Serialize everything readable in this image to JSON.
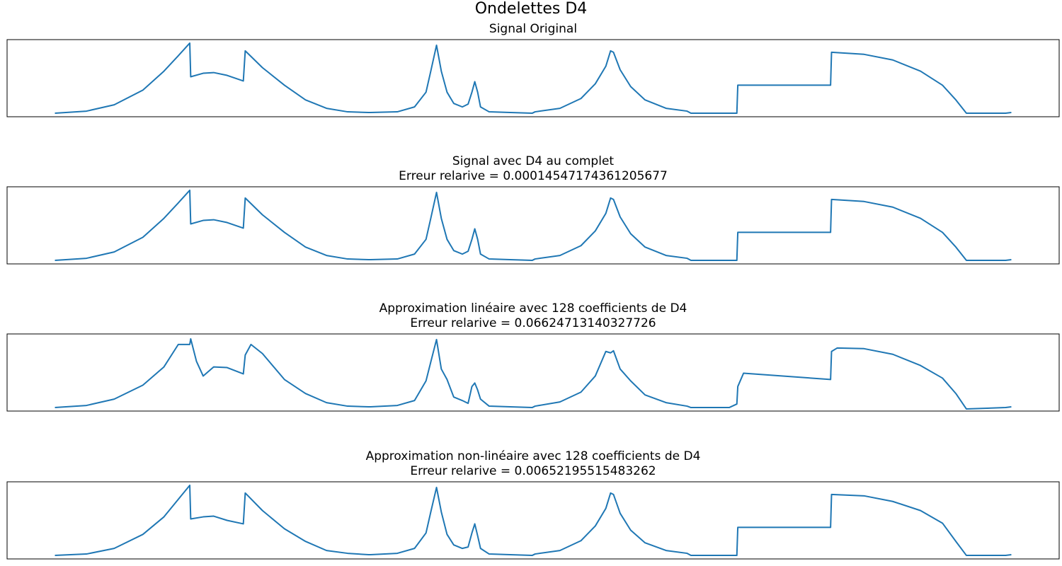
{
  "title": "Ondelettes D4",
  "chart_data": [
    {
      "type": "line",
      "title": "Signal Original",
      "color": "#1f77b4",
      "xlim": [
        -0.05,
        1.05
      ],
      "ylim": [
        -0.05,
        1.05
      ],
      "x": [
        0,
        0.033,
        0.062,
        0.092,
        0.114,
        0.129,
        0.141,
        0.142,
        0.155,
        0.166,
        0.18,
        0.197,
        0.199,
        0.217,
        0.24,
        0.262,
        0.284,
        0.306,
        0.328,
        0.33,
        0.358,
        0.376,
        0.388,
        0.393,
        0.399,
        0.404,
        0.41,
        0.417,
        0.426,
        0.432,
        0.436,
        0.439,
        0.442,
        0.445,
        0.454,
        0.476,
        0.499,
        0.502,
        0.528,
        0.55,
        0.565,
        0.576,
        0.581,
        0.584,
        0.591,
        0.602,
        0.617,
        0.639,
        0.661,
        0.665,
        0.713,
        0.714,
        0.811,
        0.812,
        0.846,
        0.876,
        0.905,
        0.928,
        0.942,
        0.953,
        0.994,
        1
      ],
      "values": [
        0,
        0.03,
        0.12,
        0.33,
        0.6,
        0.82,
        1,
        0.52,
        0.57,
        0.58,
        0.54,
        0.46,
        0.89,
        0.65,
        0.4,
        0.19,
        0.07,
        0.02,
        0.01,
        0.01,
        0.02,
        0.09,
        0.3,
        0.6,
        0.97,
        0.6,
        0.3,
        0.14,
        0.09,
        0.13,
        0.3,
        0.45,
        0.3,
        0.09,
        0.02,
        0.01,
        0,
        0.02,
        0.07,
        0.21,
        0.42,
        0.67,
        0.89,
        0.87,
        0.62,
        0.38,
        0.19,
        0.07,
        0.03,
        0,
        0,
        0.4,
        0.4,
        0.87,
        0.84,
        0.76,
        0.6,
        0.4,
        0.19,
        0,
        0,
        0.01
      ]
    },
    {
      "type": "line",
      "title": "Signal avec D4 au complet",
      "subtitle": "Erreur relarive = 0.00014547174361205677",
      "color": "#1f77b4",
      "xlim": [
        -0.05,
        1.05
      ],
      "ylim": [
        -0.05,
        1.05
      ],
      "x": [
        0,
        0.033,
        0.062,
        0.092,
        0.114,
        0.129,
        0.141,
        0.142,
        0.155,
        0.166,
        0.18,
        0.197,
        0.199,
        0.217,
        0.24,
        0.262,
        0.284,
        0.306,
        0.328,
        0.33,
        0.358,
        0.376,
        0.388,
        0.393,
        0.399,
        0.404,
        0.41,
        0.417,
        0.426,
        0.432,
        0.436,
        0.439,
        0.442,
        0.445,
        0.454,
        0.476,
        0.499,
        0.502,
        0.528,
        0.55,
        0.565,
        0.576,
        0.581,
        0.584,
        0.591,
        0.602,
        0.617,
        0.639,
        0.661,
        0.665,
        0.713,
        0.714,
        0.811,
        0.812,
        0.846,
        0.876,
        0.905,
        0.928,
        0.942,
        0.953,
        0.994,
        1
      ],
      "values": [
        0,
        0.03,
        0.12,
        0.33,
        0.6,
        0.82,
        1,
        0.52,
        0.57,
        0.58,
        0.54,
        0.46,
        0.89,
        0.65,
        0.4,
        0.19,
        0.07,
        0.02,
        0.01,
        0.01,
        0.02,
        0.09,
        0.3,
        0.6,
        0.97,
        0.6,
        0.3,
        0.14,
        0.09,
        0.13,
        0.3,
        0.45,
        0.3,
        0.09,
        0.02,
        0.01,
        0,
        0.02,
        0.07,
        0.21,
        0.42,
        0.67,
        0.89,
        0.87,
        0.62,
        0.38,
        0.19,
        0.07,
        0.03,
        0,
        0,
        0.4,
        0.4,
        0.87,
        0.84,
        0.76,
        0.6,
        0.4,
        0.19,
        0,
        0,
        0.01
      ]
    },
    {
      "type": "line",
      "title": "Approximation linéaire avec 128 coefficients de D4",
      "subtitle": "Erreur relarive = 0.06624713140327726",
      "color": "#1f77b4",
      "xlim": [
        -0.05,
        1.05
      ],
      "ylim": [
        -0.05,
        1.05
      ],
      "x": [
        0,
        0.033,
        0.062,
        0.092,
        0.114,
        0.129,
        0.141,
        0.142,
        0.148,
        0.155,
        0.166,
        0.18,
        0.197,
        0.199,
        0.205,
        0.217,
        0.24,
        0.262,
        0.284,
        0.306,
        0.328,
        0.33,
        0.358,
        0.376,
        0.388,
        0.393,
        0.399,
        0.404,
        0.41,
        0.417,
        0.426,
        0.432,
        0.436,
        0.439,
        0.442,
        0.445,
        0.454,
        0.476,
        0.499,
        0.502,
        0.528,
        0.55,
        0.565,
        0.576,
        0.581,
        0.584,
        0.591,
        0.602,
        0.617,
        0.639,
        0.661,
        0.665,
        0.705,
        0.713,
        0.714,
        0.72,
        0.811,
        0.812,
        0.818,
        0.846,
        0.876,
        0.905,
        0.928,
        0.942,
        0.953,
        0.994,
        1
      ],
      "values": [
        0,
        0.03,
        0.12,
        0.32,
        0.58,
        0.9,
        0.9,
        0.98,
        0.66,
        0.45,
        0.58,
        0.57,
        0.48,
        0.75,
        0.9,
        0.77,
        0.4,
        0.2,
        0.07,
        0.02,
        0.01,
        0.01,
        0.03,
        0.1,
        0.38,
        0.65,
        0.97,
        0.55,
        0.4,
        0.15,
        0.1,
        0.06,
        0.3,
        0.35,
        0.25,
        0.12,
        0.02,
        0.01,
        0,
        0.02,
        0.08,
        0.22,
        0.45,
        0.8,
        0.78,
        0.81,
        0.55,
        0.38,
        0.18,
        0.07,
        0.02,
        0,
        0,
        0.05,
        0.3,
        0.49,
        0.4,
        0.8,
        0.85,
        0.84,
        0.76,
        0.6,
        0.42,
        0.2,
        -0.02,
        0,
        0.01
      ]
    },
    {
      "type": "line",
      "title": "Approximation non-linéaire avec 128 coefficients de D4",
      "subtitle": "Erreur relarive = 0.00652195515483262",
      "color": "#1f77b4",
      "xlim": [
        -0.05,
        1.05
      ],
      "ylim": [
        -0.05,
        1.05
      ],
      "x": [
        0,
        0.033,
        0.062,
        0.092,
        0.114,
        0.129,
        0.141,
        0.142,
        0.155,
        0.166,
        0.18,
        0.197,
        0.199,
        0.217,
        0.24,
        0.262,
        0.284,
        0.306,
        0.328,
        0.33,
        0.358,
        0.376,
        0.388,
        0.393,
        0.399,
        0.404,
        0.41,
        0.417,
        0.426,
        0.432,
        0.436,
        0.439,
        0.442,
        0.445,
        0.454,
        0.476,
        0.499,
        0.502,
        0.528,
        0.55,
        0.565,
        0.576,
        0.581,
        0.584,
        0.591,
        0.602,
        0.617,
        0.639,
        0.661,
        0.665,
        0.713,
        0.714,
        0.811,
        0.812,
        0.846,
        0.876,
        0.905,
        0.928,
        0.942,
        0.953,
        0.994,
        1
      ],
      "values": [
        0,
        0.02,
        0.1,
        0.3,
        0.55,
        0.8,
        1,
        0.52,
        0.55,
        0.56,
        0.5,
        0.45,
        0.89,
        0.64,
        0.38,
        0.2,
        0.07,
        0.03,
        0.01,
        0.01,
        0.03,
        0.1,
        0.32,
        0.62,
        0.97,
        0.62,
        0.3,
        0.15,
        0.1,
        0.12,
        0.32,
        0.45,
        0.28,
        0.1,
        0.02,
        0.01,
        0,
        0.02,
        0.07,
        0.21,
        0.42,
        0.67,
        0.89,
        0.87,
        0.6,
        0.36,
        0.18,
        0.07,
        0.03,
        0,
        0,
        0.4,
        0.4,
        0.87,
        0.85,
        0.77,
        0.64,
        0.46,
        0.2,
        0,
        0,
        0.01
      ]
    }
  ]
}
